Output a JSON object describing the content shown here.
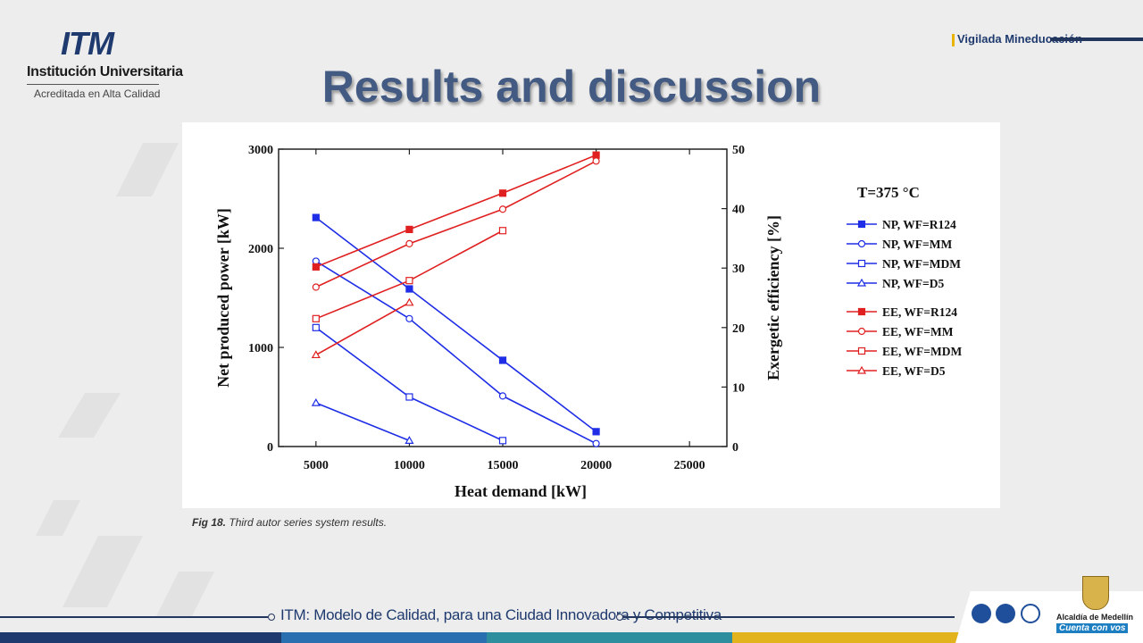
{
  "header": {
    "logo_mark": "ITM",
    "institution": "Institución Universitaria",
    "accreditation": "Acreditada en Alta Calidad",
    "vigilada": "Vigilada Mineducación"
  },
  "slide": {
    "title": "Results and discussion",
    "caption_label": "Fig 18.",
    "caption_text": "Third autor series system results."
  },
  "footer": {
    "slogan": "ITM: Modelo de Calidad, para una Ciudad Innovadora y Competitiva",
    "alcaldia": "Alcaldía de Medellín",
    "cuenta": "Cuenta con vos",
    "bar_colors": [
      "#1f3a6e",
      "#2a6fb0",
      "#2e8e9e",
      "#e3b31d"
    ]
  },
  "chart_data": {
    "type": "line",
    "annotation": "T=375 °C",
    "xlabel": "Heat demand [kW]",
    "ylabel_left": "Net produced power [kW]",
    "ylabel_right": "Exergetic efficiency [%]",
    "xlim": [
      3000,
      27000
    ],
    "ylim_left": [
      0,
      3000
    ],
    "ylim_right": [
      0,
      50
    ],
    "xticks": [
      5000,
      10000,
      15000,
      20000,
      25000
    ],
    "yticks_left": [
      0,
      1000,
      2000,
      3000
    ],
    "yticks_right": [
      0,
      10,
      20,
      30,
      40,
      50
    ],
    "series": [
      {
        "name": "NP, WF=R124",
        "axis": "left",
        "color": "#1f2ee6",
        "marker": "square-filled",
        "x": [
          5000,
          10000,
          15000,
          20000
        ],
        "y": [
          2310,
          1590,
          870,
          150
        ]
      },
      {
        "name": "NP, WF=MM",
        "axis": "left",
        "color": "#1f2ee6",
        "marker": "circle-open",
        "x": [
          5000,
          10000,
          15000,
          20000
        ],
        "y": [
          1870,
          1290,
          510,
          30
        ]
      },
      {
        "name": "NP, WF=MDM",
        "axis": "left",
        "color": "#1f2ee6",
        "marker": "square-open",
        "x": [
          5000,
          10000,
          15000
        ],
        "y": [
          1200,
          500,
          60
        ]
      },
      {
        "name": "NP, WF=D5",
        "axis": "left",
        "color": "#1f2ee6",
        "marker": "triangle-open",
        "x": [
          5000,
          10000
        ],
        "y": [
          440,
          60
        ]
      },
      {
        "name": "EE, WF=R124",
        "axis": "right",
        "color": "#e02020",
        "marker": "square-filled",
        "x": [
          5000,
          10000,
          15000,
          20000
        ],
        "y": [
          30.2,
          36.5,
          42.6,
          49.0
        ]
      },
      {
        "name": "EE, WF=MM",
        "axis": "right",
        "color": "#e02020",
        "marker": "circle-open",
        "x": [
          5000,
          10000,
          15000,
          20000
        ],
        "y": [
          26.8,
          34.1,
          39.9,
          48.0
        ]
      },
      {
        "name": "EE, WF=MDM",
        "axis": "right",
        "color": "#e02020",
        "marker": "square-open",
        "x": [
          5000,
          10000,
          15000
        ],
        "y": [
          21.5,
          27.9,
          36.3
        ]
      },
      {
        "name": "EE, WF=D5",
        "axis": "right",
        "color": "#e02020",
        "marker": "triangle-open",
        "x": [
          5000,
          10000
        ],
        "y": [
          15.4,
          24.2
        ]
      }
    ]
  }
}
